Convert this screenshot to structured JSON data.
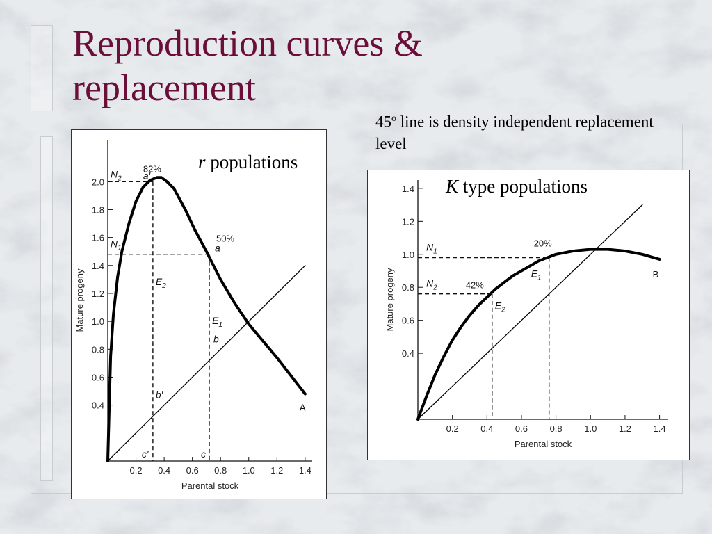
{
  "slide": {
    "title": "Reproduction curves & replacement",
    "note_prefix": "45",
    "note_sup": "o",
    "note_text": " line is density independent replacement level"
  },
  "chart_data": [
    {
      "type": "line",
      "title": "r populations",
      "title_italic_part": "r",
      "title_rest": " populations",
      "xlabel": "Parental stock",
      "ylabel": "Mature progeny",
      "xlim": [
        0,
        1.45
      ],
      "ylim": [
        0,
        2.3
      ],
      "xticks": [
        "0.2",
        "0.4",
        "0.6",
        "0.8",
        "1.0",
        "1.2",
        "1.4"
      ],
      "yticks": [
        "0.4",
        "0.6",
        "0.8",
        "1.0",
        "1.2",
        "1.4",
        "1.6",
        "1.8",
        "2.0"
      ],
      "series": [
        {
          "name": "A",
          "x": [
            0.0,
            0.02,
            0.04,
            0.07,
            0.1,
            0.15,
            0.2,
            0.25,
            0.3,
            0.35,
            0.38,
            0.42,
            0.47,
            0.55,
            0.62,
            0.7,
            0.8,
            0.9,
            1.0,
            1.1,
            1.2,
            1.3,
            1.4
          ],
          "y": [
            0.0,
            0.75,
            1.05,
            1.32,
            1.5,
            1.7,
            1.86,
            1.96,
            2.01,
            2.03,
            2.03,
            2.0,
            1.95,
            1.8,
            1.65,
            1.5,
            1.3,
            1.13,
            0.98,
            0.86,
            0.74,
            0.61,
            0.48
          ]
        },
        {
          "name": "45° line",
          "x": [
            0.0,
            1.4
          ],
          "y": [
            0.0,
            1.4
          ]
        }
      ],
      "annotations": {
        "N1": {
          "label": "N",
          "sub": "1",
          "y": 1.48
        },
        "N2": {
          "label": "N",
          "sub": "2",
          "y": 2.0
        },
        "E1": {
          "label": "E",
          "sub": "1",
          "x": 0.72
        },
        "E2": {
          "label": "E",
          "sub": "2",
          "x": 0.32
        },
        "pct_a_prime": "82%",
        "pct_a": "50%",
        "a_prime": "a′",
        "a": "a",
        "b": "b",
        "b_prime": "b′",
        "c": "c",
        "c_prime": "c′",
        "curve_end": "A"
      }
    },
    {
      "type": "line",
      "title": "K type populations",
      "title_italic_part": "K",
      "title_rest": " type populations",
      "xlabel": "Parental stock",
      "ylabel": "Mature progeny",
      "xlim": [
        0,
        1.45
      ],
      "ylim": [
        0,
        1.45
      ],
      "xticks": [
        "0.2",
        "0.4",
        "0.6",
        "0.8",
        "1.0",
        "1.2",
        "1.4"
      ],
      "yticks": [
        "0.4",
        "0.6",
        "0.8",
        "1.0",
        "1.2",
        "1.4"
      ],
      "series": [
        {
          "name": "B",
          "x": [
            0.0,
            0.05,
            0.1,
            0.15,
            0.2,
            0.25,
            0.3,
            0.35,
            0.4,
            0.45,
            0.5,
            0.55,
            0.6,
            0.65,
            0.7,
            0.75,
            0.8,
            0.9,
            1.0,
            1.1,
            1.2,
            1.3,
            1.4
          ],
          "y": [
            0.0,
            0.14,
            0.27,
            0.38,
            0.48,
            0.56,
            0.63,
            0.69,
            0.74,
            0.79,
            0.83,
            0.87,
            0.9,
            0.93,
            0.96,
            0.98,
            1.0,
            1.02,
            1.03,
            1.03,
            1.02,
            1.0,
            0.97
          ]
        },
        {
          "name": "45° line",
          "x": [
            0.0,
            1.3
          ],
          "y": [
            0.0,
            1.3
          ]
        }
      ],
      "annotations": {
        "N1": {
          "label": "N",
          "sub": "1",
          "y": 0.98
        },
        "N2": {
          "label": "N",
          "sub": "2",
          "y": 0.76
        },
        "E1": {
          "label": "E",
          "sub": "1",
          "x": 0.76
        },
        "E2": {
          "label": "E",
          "sub": "2",
          "x": 0.43
        },
        "pct_20": "20%",
        "pct_42": "42%",
        "curve_end": "B"
      }
    }
  ]
}
